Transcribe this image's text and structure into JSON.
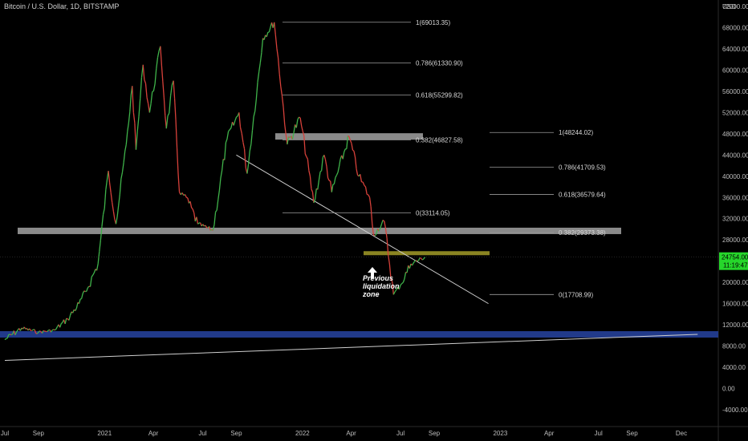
{
  "header": {
    "title": "Bitcoin / U.S. Dollar, 1D, BITSTAMP",
    "currency": "USD"
  },
  "chart_data": {
    "type": "line",
    "title": "Bitcoin / U.S. Dollar, 1D, BITSTAMP",
    "ylabel": "USD",
    "xlabel": "",
    "ylim": [
      -5000,
      72000
    ],
    "y_ticks": [
      "72000.00",
      "68000.00",
      "64000.00",
      "60000.00",
      "56000.00",
      "52000.00",
      "48000.00",
      "44000.00",
      "40000.00",
      "36000.00",
      "32000.00",
      "28000.00",
      "24000.00",
      "20000.00",
      "16000.00",
      "12000.00",
      "8000.00",
      "4000.00",
      "0.00",
      "-4000.00"
    ],
    "x_ticks": [
      {
        "label": "Jul",
        "date": "2020-07-01"
      },
      {
        "label": "Sep",
        "date": "2020-09-01"
      },
      {
        "label": "2021",
        "date": "2021-01-01"
      },
      {
        "label": "Apr",
        "date": "2021-04-01"
      },
      {
        "label": "Jul",
        "date": "2021-07-01"
      },
      {
        "label": "Sep",
        "date": "2021-09-01"
      },
      {
        "label": "2022",
        "date": "2022-01-01"
      },
      {
        "label": "Apr",
        "date": "2022-04-01"
      },
      {
        "label": "Jul",
        "date": "2022-07-01"
      },
      {
        "label": "Sep",
        "date": "2022-09-01"
      },
      {
        "label": "2023",
        "date": "2023-01-01"
      },
      {
        "label": "Apr",
        "date": "2023-04-01"
      },
      {
        "label": "Jul",
        "date": "2023-07-01"
      },
      {
        "label": "Sep",
        "date": "2023-09-01"
      },
      {
        "label": "Dec",
        "date": "2023-12-01"
      }
    ],
    "series": [
      {
        "name": "",
        "color": "#d7d7d7",
        "points": [
          [
            "2020-07-01",
            9200
          ],
          [
            "2020-08-01",
            11400
          ],
          [
            "2020-09-01",
            10600
          ],
          [
            "2020-10-01",
            11000
          ],
          [
            "2020-10-25",
            13100
          ],
          [
            "2020-11-15",
            16000
          ],
          [
            "2020-12-01",
            19000
          ],
          [
            "2020-12-20",
            23500
          ],
          [
            "2021-01-08",
            41000
          ],
          [
            "2021-01-22",
            31000
          ],
          [
            "2021-02-10",
            46000
          ],
          [
            "2021-02-21",
            57000
          ],
          [
            "2021-02-28",
            45000
          ],
          [
            "2021-03-13",
            61000
          ],
          [
            "2021-03-25",
            52000
          ],
          [
            "2021-04-14",
            64500
          ],
          [
            "2021-04-25",
            49000
          ],
          [
            "2021-05-08",
            58000
          ],
          [
            "2021-05-19",
            37000
          ],
          [
            "2021-06-01",
            36000
          ],
          [
            "2021-06-22",
            31000
          ],
          [
            "2021-07-20",
            29800
          ],
          [
            "2021-08-15",
            47000
          ],
          [
            "2021-09-06",
            52000
          ],
          [
            "2021-09-21",
            40500
          ],
          [
            "2021-10-20",
            66000
          ],
          [
            "2021-11-10",
            69000
          ],
          [
            "2021-12-04",
            46000
          ],
          [
            "2021-12-28",
            51000
          ],
          [
            "2022-01-22",
            35000
          ],
          [
            "2022-02-10",
            44000
          ],
          [
            "2022-02-24",
            37000
          ],
          [
            "2022-03-28",
            47500
          ],
          [
            "2022-04-15",
            40000
          ],
          [
            "2022-05-05",
            36000
          ],
          [
            "2022-05-12",
            29000
          ],
          [
            "2022-06-01",
            31500
          ],
          [
            "2022-06-18",
            17700
          ],
          [
            "2022-07-01",
            19500
          ],
          [
            "2022-07-20",
            23500
          ],
          [
            "2022-08-15",
            24754
          ]
        ]
      }
    ],
    "fib_levels_upper": [
      {
        "label": "1(69013.35)",
        "value": 69013.35
      },
      {
        "label": "0.786(61330.90)",
        "value": 61330.9
      },
      {
        "label": "0.618(55299.82)",
        "value": 55299.82
      },
      {
        "label": "0.382(46827.58)",
        "value": 46827.58
      },
      {
        "label": "0(33114.05)",
        "value": 33114.05
      }
    ],
    "fib_levels_lower": [
      {
        "label": "1(48244.02)",
        "value": 48244.02
      },
      {
        "label": "0.786(41709.53)",
        "value": 41709.53
      },
      {
        "label": "0.618(36579.64)",
        "value": 36579.64
      },
      {
        "label": "0.382(29373.38)",
        "value": 29373.38
      },
      {
        "label": "0(17708.99)",
        "value": 17708.99
      }
    ],
    "zones": [
      {
        "name": "grey-support",
        "value": 29700,
        "color": "#8a8a8a"
      },
      {
        "name": "grey-resistance",
        "value": 47500,
        "color": "#8a8a8a"
      },
      {
        "name": "liquidation-zone",
        "value": 25500,
        "color": "#8a8422"
      },
      {
        "name": "blue-zone",
        "value": 10200,
        "color": "#213a8a"
      }
    ],
    "trendlines": [
      {
        "name": "descending",
        "from": [
          "2021-09-01",
          44000
        ],
        "to": [
          "2022-12-10",
          16000
        ]
      },
      {
        "name": "ascending",
        "from": [
          "2020-07-01",
          5300
        ],
        "to": [
          "2023-12-31",
          10200
        ]
      }
    ],
    "annotation": "Previous liquidation zone",
    "current_price": {
      "label": "24754.00",
      "time": "11:19:47",
      "color": "#26d62b"
    },
    "grid": false
  }
}
